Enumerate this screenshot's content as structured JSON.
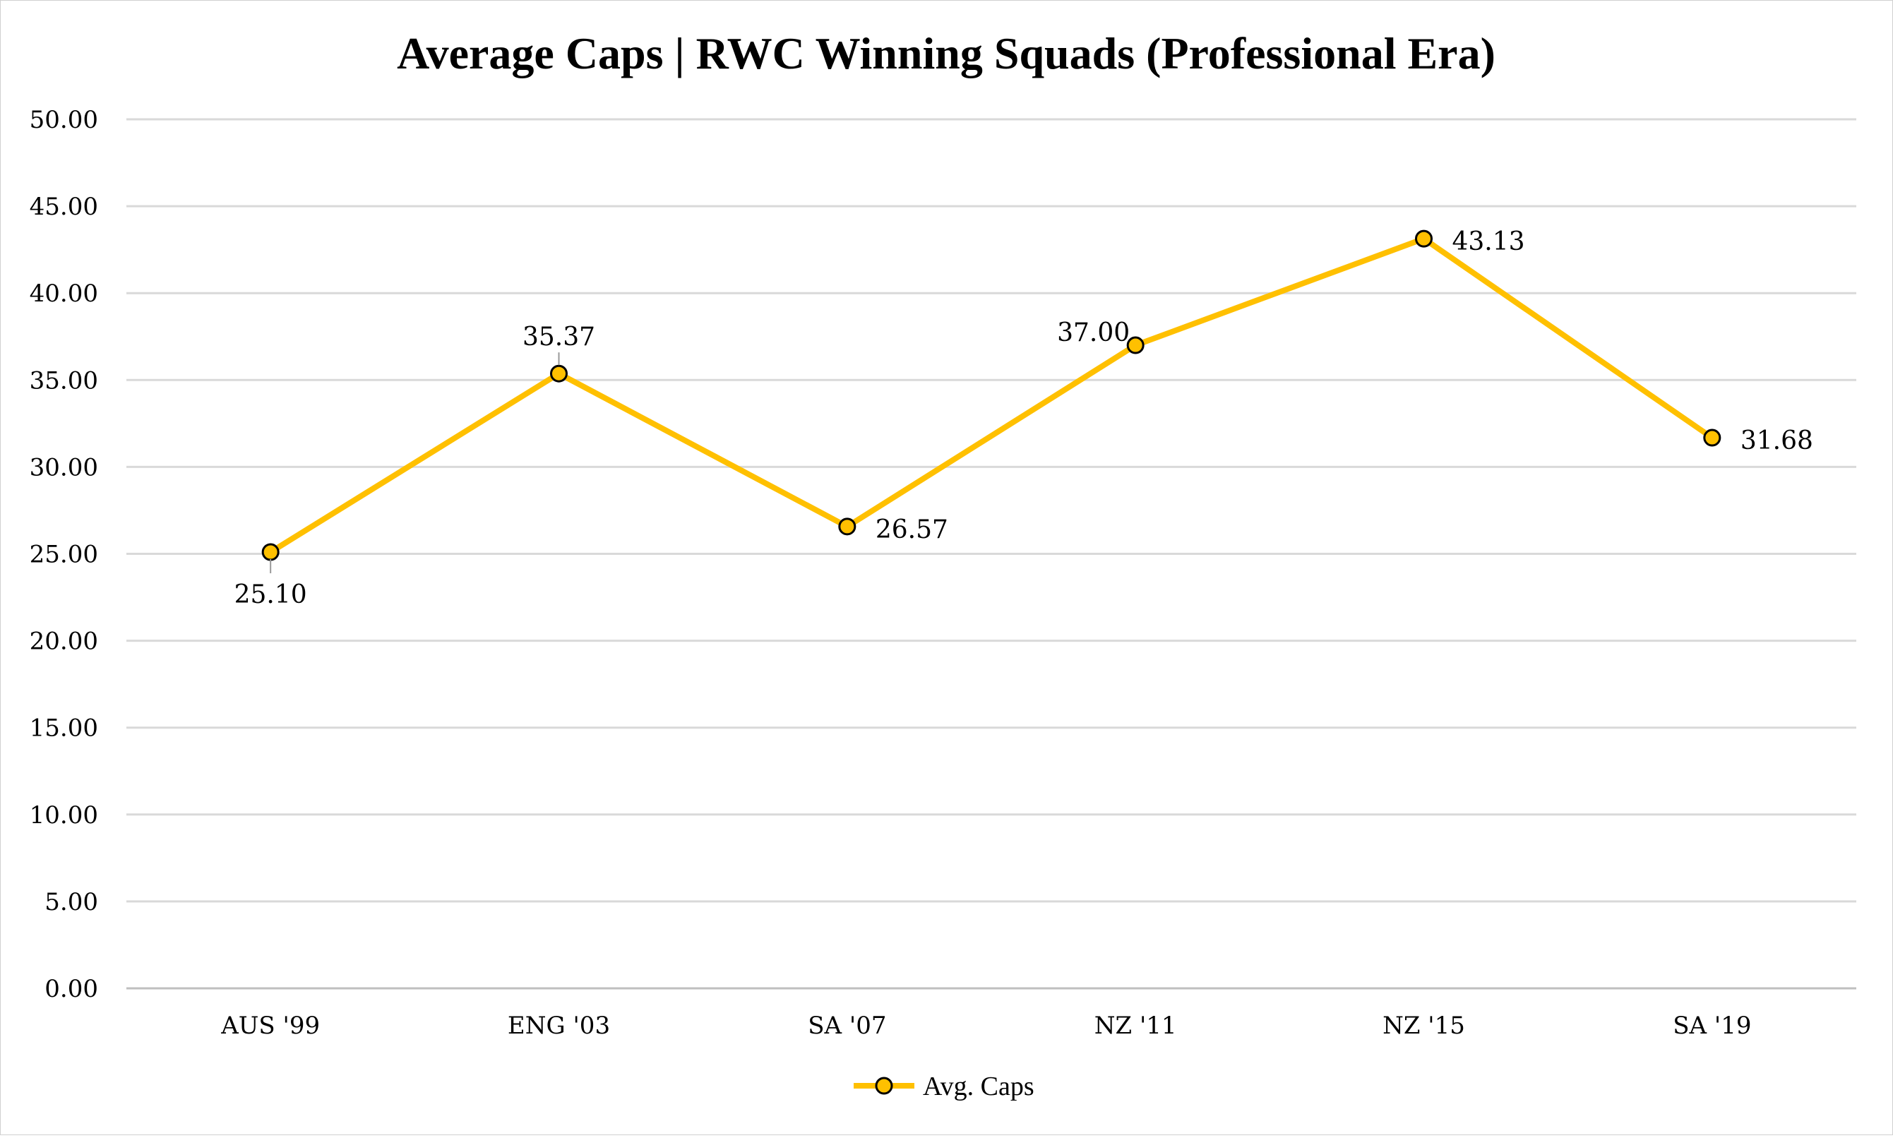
{
  "chart_data": {
    "type": "line",
    "title": "Average Caps | RWC Winning Squads (Professional Era)",
    "xlabel": "",
    "ylabel": "",
    "categories": [
      "AUS '99",
      "ENG '03",
      "SA '07",
      "NZ '11",
      "NZ '15",
      "SA '19"
    ],
    "series": [
      {
        "name": "Avg. Caps",
        "values": [
          25.1,
          35.37,
          26.57,
          37.0,
          43.13,
          31.68
        ],
        "data_labels": [
          "25.10",
          "35.37",
          "26.57",
          "37.00",
          "43.13",
          "31.68"
        ],
        "label_positions": [
          "below",
          "above",
          "right",
          "left-above",
          "right",
          "right"
        ]
      }
    ],
    "y_ticks": [
      "0.00",
      "5.00",
      "10.00",
      "15.00",
      "20.00",
      "25.00",
      "30.00",
      "35.00",
      "40.00",
      "45.00",
      "50.00"
    ],
    "ylim": [
      0,
      50
    ],
    "grid": true,
    "legend_position": "bottom",
    "colors": {
      "series": "#FFC000",
      "marker_edge": "#000000",
      "grid": "#d9d9d9"
    }
  }
}
